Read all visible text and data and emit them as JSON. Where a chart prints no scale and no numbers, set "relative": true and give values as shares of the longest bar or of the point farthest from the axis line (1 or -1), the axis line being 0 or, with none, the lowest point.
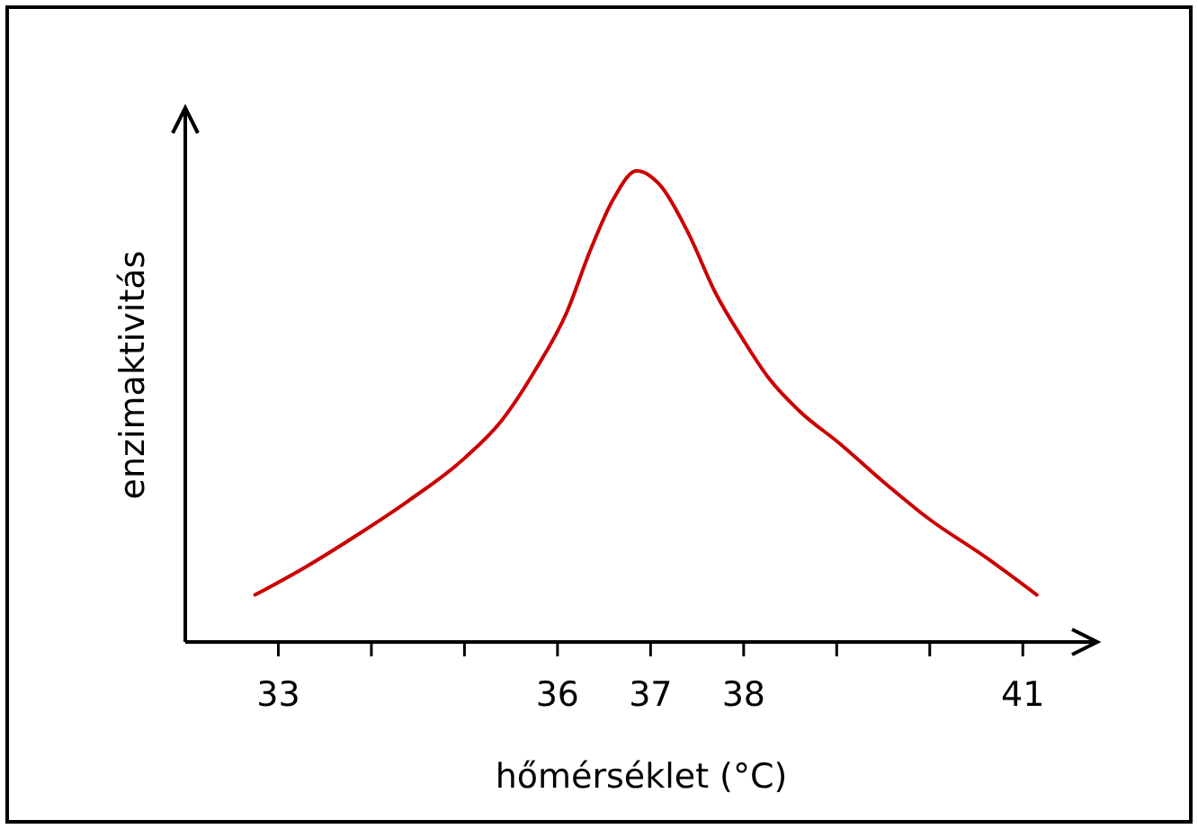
{
  "chart_data": {
    "type": "line",
    "xlabel": "hőmérséklet (°C)",
    "ylabel": "enzimaktivitás",
    "relative": true,
    "xlim": [
      32,
      41.8
    ],
    "xticks": [
      33,
      {
        "value": 34,
        "label": null
      },
      {
        "value": 35,
        "label": null
      },
      36,
      37,
      38,
      {
        "value": 39,
        "label": null
      },
      {
        "value": 40,
        "label": null
      },
      41
    ],
    "grid": false,
    "marker": "none",
    "line_style": "solid",
    "series": [
      {
        "color": "#cc0000",
        "x": [
          32.75,
          33.3,
          33.87,
          34.4,
          35,
          35.4,
          35.77,
          36.1,
          36.35,
          36.6,
          36.85,
          37.1,
          37.4,
          37.7,
          38,
          38.27,
          38.6,
          39.04,
          39.5,
          40,
          40.6,
          41.15
        ],
        "values": [
          0.1,
          0.16,
          0.23,
          0.3,
          0.39,
          0.47,
          0.58,
          0.7,
          0.83,
          0.94,
          1,
          0.97,
          0.87,
          0.74,
          0.64,
          0.56,
          0.49,
          0.42,
          0.34,
          0.26,
          0.18,
          0.1
        ]
      }
    ]
  }
}
